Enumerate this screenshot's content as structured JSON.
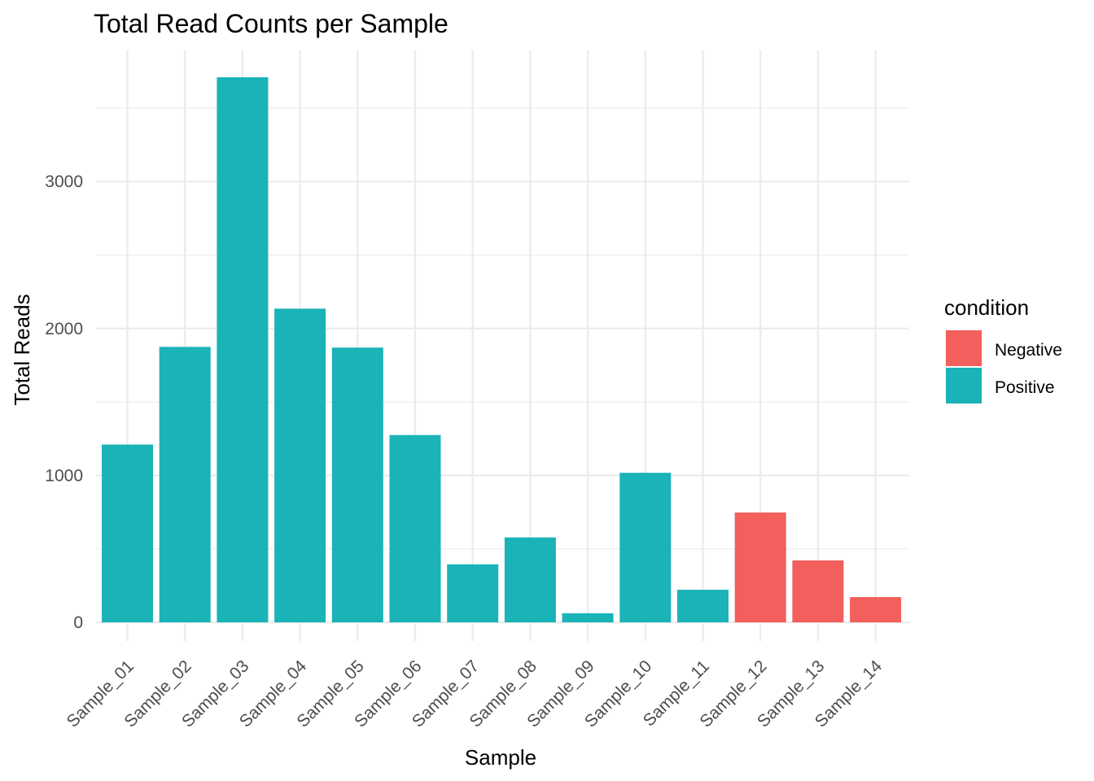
{
  "chart_data": {
    "type": "bar",
    "title": "Total Read Counts per Sample",
    "xlabel": "Sample",
    "ylabel": "Total Reads",
    "categories": [
      "Sample_01",
      "Sample_02",
      "Sample_03",
      "Sample_04",
      "Sample_05",
      "Sample_06",
      "Sample_07",
      "Sample_08",
      "Sample_09",
      "Sample_10",
      "Sample_11",
      "Sample_12",
      "Sample_13",
      "Sample_14"
    ],
    "values": [
      1210,
      1875,
      3710,
      2135,
      1870,
      1275,
      395,
      578,
      62,
      1018,
      222,
      748,
      422,
      172
    ],
    "condition": [
      "Positive",
      "Positive",
      "Positive",
      "Positive",
      "Positive",
      "Positive",
      "Positive",
      "Positive",
      "Positive",
      "Positive",
      "Positive",
      "Negative",
      "Negative",
      "Negative"
    ],
    "ylim": [
      -130,
      3900
    ],
    "yticks": [
      0,
      1000,
      2000,
      3000
    ],
    "grid": true,
    "legend": {
      "title": "condition",
      "placement": "right",
      "entries": [
        {
          "label": "Negative",
          "color": "#F8766D"
        },
        {
          "label": "Positive",
          "color": "#00BFC4"
        }
      ]
    },
    "colors": {
      "Negative": "#F25F5C",
      "Positive": "#1AB3B7"
    }
  }
}
